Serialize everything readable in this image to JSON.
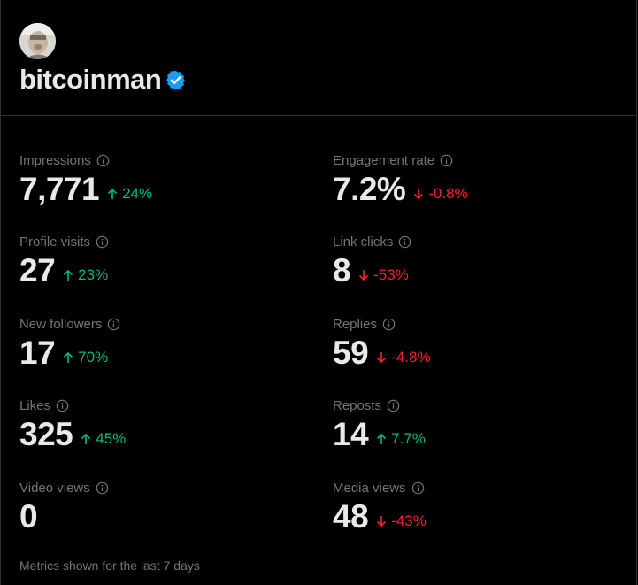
{
  "profile": {
    "username": "bitcoinman",
    "verified": true,
    "avatar": "avatar-photo",
    "verified_icon": "verified-badge-icon"
  },
  "colors": {
    "background": "#000000",
    "text": "#e7e9ea",
    "muted": "#71767b",
    "up": "#00ba7c",
    "down": "#f4212e",
    "verified": "#1d9bf0",
    "divider": "#2f3336"
  },
  "metrics": {
    "impressions": {
      "label": "Impressions",
      "value": "7,771",
      "delta": "24%",
      "direction": "up"
    },
    "engagement_rate": {
      "label": "Engagement rate",
      "value": "7.2%",
      "delta": "-0.8%",
      "direction": "down"
    },
    "profile_visits": {
      "label": "Profile visits",
      "value": "27",
      "delta": "23%",
      "direction": "up"
    },
    "link_clicks": {
      "label": "Link clicks",
      "value": "8",
      "delta": "-53%",
      "direction": "down"
    },
    "new_followers": {
      "label": "New followers",
      "value": "17",
      "delta": "70%",
      "direction": "up"
    },
    "replies": {
      "label": "Replies",
      "value": "59",
      "delta": "-4.8%",
      "direction": "down"
    },
    "likes": {
      "label": "Likes",
      "value": "325",
      "delta": "45%",
      "direction": "up"
    },
    "reposts": {
      "label": "Reposts",
      "value": "14",
      "delta": "7.7%",
      "direction": "up"
    },
    "video_views": {
      "label": "Video views",
      "value": "0",
      "delta": "",
      "direction": "none"
    },
    "media_views": {
      "label": "Media views",
      "value": "48",
      "delta": "-43%",
      "direction": "down"
    }
  },
  "footer": {
    "note": "Metrics shown for the last 7 days"
  }
}
